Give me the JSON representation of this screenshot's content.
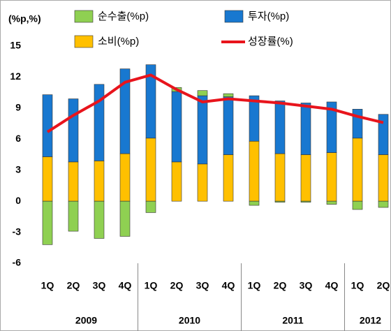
{
  "chart_data": {
    "type": "stacked_bar_line",
    "ylabel": "(%p,%)",
    "groups": [
      {
        "label": "2009",
        "categories": [
          "1Q",
          "2Q",
          "3Q",
          "4Q"
        ]
      },
      {
        "label": "2010",
        "categories": [
          "1Q",
          "2Q",
          "3Q",
          "4Q"
        ]
      },
      {
        "label": "2011",
        "categories": [
          "1Q",
          "2Q",
          "3Q",
          "4Q"
        ]
      },
      {
        "label": "2012",
        "categories": [
          "1Q",
          "2Q"
        ]
      }
    ],
    "series": [
      {
        "name": "소비(%p)",
        "color": "#ffc000",
        "kind": "bar",
        "values": [
          4.3,
          3.8,
          3.9,
          4.6,
          6.1,
          3.8,
          3.6,
          4.5,
          5.8,
          4.6,
          4.5,
          4.7,
          6.1,
          4.5
        ]
      },
      {
        "name": "투자(%p)",
        "color": "#1878d0",
        "kind": "bar",
        "values": [
          6.0,
          6.1,
          7.4,
          8.2,
          7.1,
          6.8,
          6.6,
          5.6,
          4.4,
          5.1,
          5.0,
          4.9,
          2.8,
          3.9
        ]
      },
      {
        "name": "순수출(%p)",
        "color": "#8fd052",
        "kind": "bar",
        "values": [
          -4.2,
          -2.9,
          -3.6,
          -3.4,
          -1.1,
          0.4,
          0.5,
          0.3,
          -0.4,
          -0.1,
          -0.1,
          -0.3,
          -0.8,
          -0.6
        ]
      },
      {
        "name": "성장률(%)",
        "color": "#e8141c",
        "kind": "line",
        "values": [
          6.7,
          8.3,
          9.7,
          11.5,
          12.2,
          10.8,
          9.6,
          9.9,
          9.7,
          9.5,
          9.2,
          8.9,
          8.2,
          7.6
        ]
      }
    ],
    "ylim": [
      -6,
      15
    ],
    "yticks": [
      -6,
      -3,
      0,
      3,
      6,
      9,
      12,
      15
    ],
    "grid": false
  }
}
